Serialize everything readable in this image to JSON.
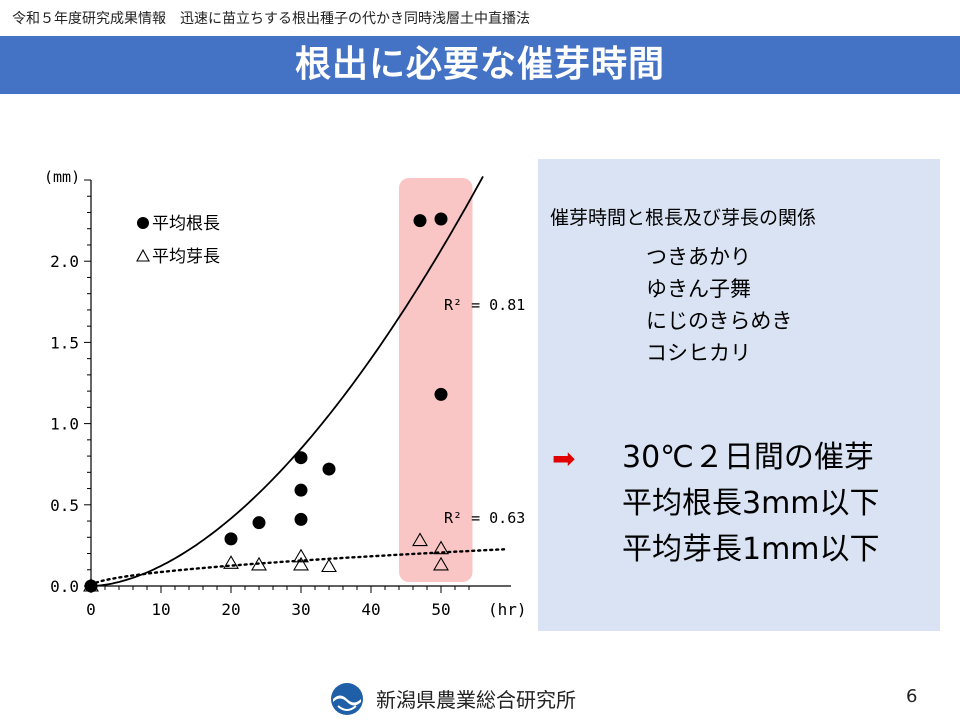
{
  "header": {
    "caption": "令和５年度研究成果情報　迅速に苗立ちする根出種子の代かき同時浅層土中直播法",
    "title": "根出に必要な催芽時間"
  },
  "colors": {
    "title_bar": "#4472c4",
    "panel_bg": "#dae3f3",
    "highlight": "#f9c5c5",
    "arrow": "#e00000"
  },
  "chart_data": {
    "type": "scatter",
    "xlabel": "(hr)",
    "ylabel": "(mm)",
    "xlim": [
      0,
      60
    ],
    "ylim": [
      0,
      2.5
    ],
    "x_ticks": [
      "0",
      "10",
      "20",
      "30",
      "40",
      "50"
    ],
    "y_ticks": [
      "0.0",
      "0.5",
      "1.0",
      "1.5",
      "2.0"
    ],
    "legend_position": "top-left",
    "highlight_band": {
      "x": [
        44,
        54.5
      ]
    },
    "series": [
      {
        "name": "平均根長",
        "marker": "filled-circle",
        "points": [
          {
            "x": 0,
            "y": 0.0
          },
          {
            "x": 20,
            "y": 0.29
          },
          {
            "x": 24,
            "y": 0.39
          },
          {
            "x": 30,
            "y": 0.79
          },
          {
            "x": 30,
            "y": 0.59
          },
          {
            "x": 30,
            "y": 0.41
          },
          {
            "x": 34,
            "y": 0.72
          },
          {
            "x": 47,
            "y": 2.25
          },
          {
            "x": 50,
            "y": 2.26
          },
          {
            "x": 50,
            "y": 1.18
          }
        ],
        "trend": {
          "r2_label": "R² = 0.81"
        }
      },
      {
        "name": "平均芽長",
        "marker": "open-triangle",
        "points": [
          {
            "x": 0,
            "y": 0.0
          },
          {
            "x": 20,
            "y": 0.14
          },
          {
            "x": 24,
            "y": 0.13
          },
          {
            "x": 30,
            "y": 0.18
          },
          {
            "x": 30,
            "y": 0.13
          },
          {
            "x": 34,
            "y": 0.12
          },
          {
            "x": 47,
            "y": 0.28
          },
          {
            "x": 50,
            "y": 0.23
          },
          {
            "x": 50,
            "y": 0.13
          }
        ],
        "trend": {
          "r2_label": "R² = 0.63"
        }
      }
    ]
  },
  "panel": {
    "heading": "催芽時間と根長及び芽長の関係",
    "varieties": [
      "つきあかり",
      "ゆきん子舞",
      "にじのきらめき",
      "コシヒカリ"
    ],
    "arrow_icon": "right-arrow-icon",
    "conclusion": [
      "30℃２日間の催芽",
      "平均根長3mm以下",
      "平均芽長1mm以下"
    ]
  },
  "footer": {
    "logo_icon": "institute-logo-icon",
    "org": "新潟県農業総合研究所",
    "page": "6"
  }
}
